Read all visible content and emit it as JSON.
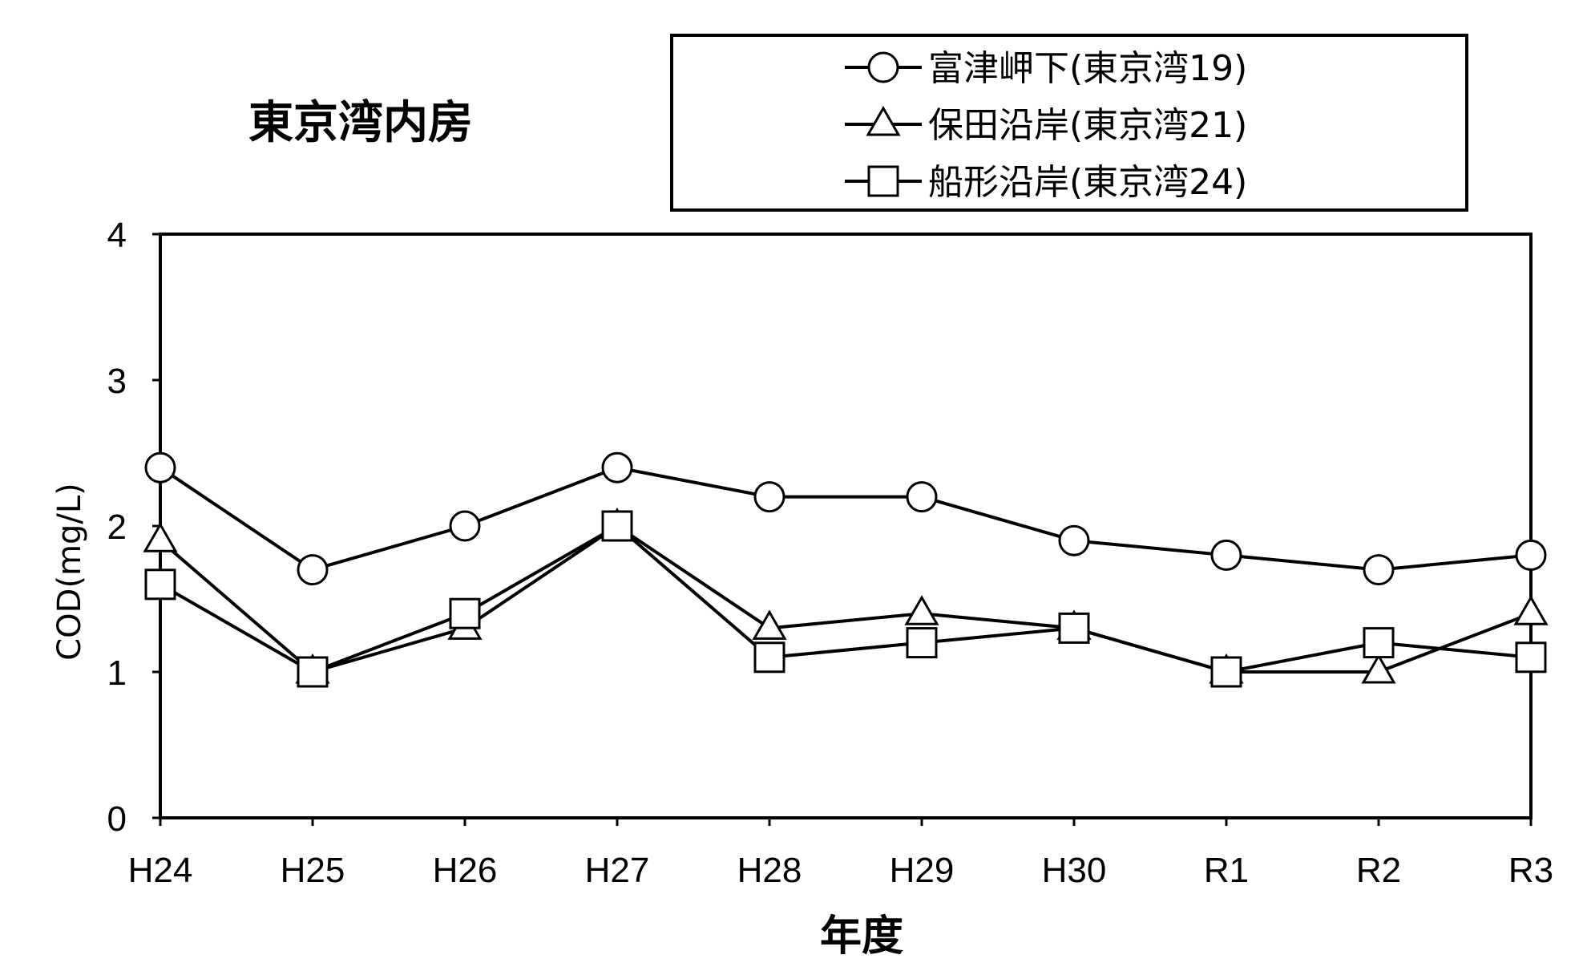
{
  "chart_data": {
    "type": "line",
    "title": "東京湾内房",
    "xlabel": "年度",
    "ylabel": "COD(mg/L)",
    "ylim": [
      0,
      4
    ],
    "yticks": [
      "0",
      "1",
      "2",
      "3",
      "4"
    ],
    "categories": [
      "H24",
      "H25",
      "H26",
      "H27",
      "H28",
      "H29",
      "H30",
      "R1",
      "R2",
      "R3"
    ],
    "grid": false,
    "legend_position": "top-right",
    "series": [
      {
        "name": "富津岬下(東京湾19)",
        "marker": "circle",
        "values": [
          2.4,
          1.7,
          2.0,
          2.4,
          2.2,
          2.2,
          1.9,
          1.8,
          1.7,
          1.8
        ]
      },
      {
        "name": "保田沿岸(東京湾21)",
        "marker": "triangle",
        "values": [
          1.9,
          1.0,
          1.3,
          2.0,
          1.3,
          1.4,
          1.3,
          1.0,
          1.0,
          1.4
        ]
      },
      {
        "name": "船形沿岸(東京湾24)",
        "marker": "square",
        "values": [
          1.6,
          1.0,
          1.4,
          2.0,
          1.1,
          1.2,
          1.3,
          1.0,
          1.2,
          1.1
        ]
      }
    ]
  }
}
